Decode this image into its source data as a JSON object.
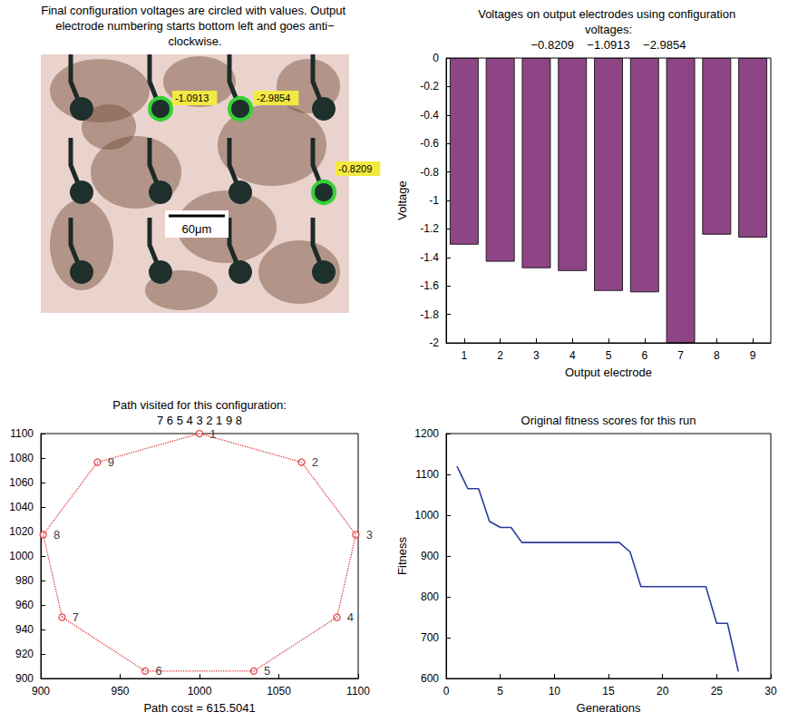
{
  "chart_data": [
    {
      "type": "image",
      "title": "Final configuration voltages are circled with values. Output electrode numbering starts bottom left and goes anti−clockwise.",
      "annotations": [
        "-1.0913",
        "-2.9854",
        "-0.8209",
        "60μm"
      ]
    },
    {
      "type": "bar",
      "title": "Voltages on output electrodes using configuration voltages:",
      "subtitle": "−0.8209    −1.0913    −2.9854",
      "x_label": "Output electrode",
      "y_label": "Voltage",
      "categories": [
        "1",
        "2",
        "3",
        "4",
        "5",
        "6",
        "7",
        "8",
        "9"
      ],
      "values": [
        -1.31,
        -1.43,
        -1.475,
        -1.495,
        -1.635,
        -1.645,
        -2,
        -1.24,
        -1.26
      ],
      "color": "#8e4585",
      "ylim": [
        -2,
        0
      ],
      "yticks": [
        -2,
        -1.8,
        -1.6,
        -1.4,
        -1.2,
        -1,
        -0.8,
        -0.6,
        -0.4,
        -0.2,
        0
      ],
      "grid": false
    },
    {
      "type": "line",
      "title": "Path visited for this configuration:",
      "subtitle": "7 6 5 4 3 2 1 9 8",
      "x_label": "Path cost = 615.5041",
      "labels": [
        "1",
        "2",
        "3",
        "4",
        "5",
        "6",
        "7",
        "8",
        "9"
      ],
      "x": [
        1000,
        1064.3,
        1098.5,
        1086.6,
        1034.2,
        965.8,
        913.4,
        901.5,
        935.7
      ],
      "y": [
        1100,
        1076.6,
        1017.4,
        950,
        906,
        906,
        950,
        1017.4,
        1076.6
      ],
      "path": [
        "7",
        "6",
        "5",
        "4",
        "3",
        "2",
        "1",
        "9",
        "8",
        "7"
      ],
      "color": "#e0383d",
      "marker": "o",
      "line_style": "dotted",
      "xlim": [
        900,
        1100
      ],
      "xticks": [
        900,
        950,
        1000,
        1050,
        1100
      ],
      "ylim": [
        900,
        1100
      ],
      "yticks": [
        900,
        920,
        940,
        960,
        980,
        1000,
        1020,
        1040,
        1060,
        1080,
        1100
      ],
      "grid": false
    },
    {
      "type": "line",
      "title": "Original fitness scores for this run",
      "x_label": "Generations",
      "y_label": "Fitness",
      "x": [
        1,
        2,
        3,
        4,
        5,
        6,
        7,
        8,
        9,
        10,
        11,
        12,
        13,
        14,
        15,
        16,
        17,
        18,
        19,
        20,
        21,
        22,
        23,
        24,
        25,
        26,
        27
      ],
      "values": [
        1120,
        1065,
        1065,
        985,
        970,
        970,
        933,
        933,
        933,
        933,
        933,
        933,
        933,
        933,
        933,
        933,
        910,
        825,
        825,
        825,
        825,
        825,
        825,
        825,
        735,
        735,
        617
      ],
      "color": "#2b3a9e",
      "xlim": [
        0,
        30
      ],
      "xticks": [
        0,
        5,
        10,
        15,
        20,
        25,
        30
      ],
      "ylim": [
        600,
        1200
      ],
      "yticks": [
        600,
        700,
        800,
        900,
        1000,
        1100,
        1200
      ],
      "grid": false
    }
  ]
}
